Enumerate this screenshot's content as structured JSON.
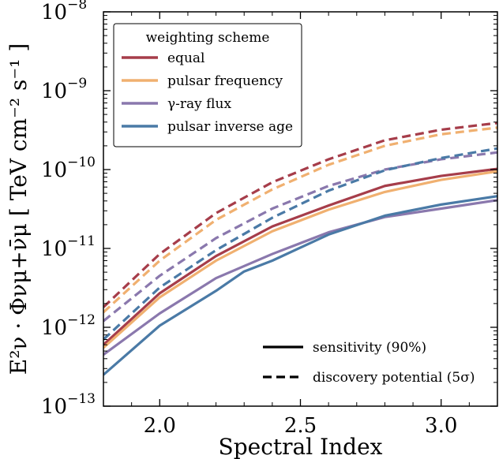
{
  "chart_data": {
    "type": "line",
    "xlabel": "Spectral Index",
    "ylabel": "E²ν · Φνμ+ν̄μ [ TeV cm⁻² s⁻¹ ]",
    "xlim": [
      1.8,
      3.2
    ],
    "ylim": [
      1e-13,
      1e-08
    ],
    "yscale": "log",
    "x_ticks": [
      2.0,
      2.5,
      3.0
    ],
    "x_tick_labels": [
      "2.0",
      "2.5",
      "3.0"
    ],
    "y_ticks": [
      {
        "value": 1e-13,
        "base": "10",
        "exp": "−13"
      },
      {
        "value": 1e-12,
        "base": "10",
        "exp": "−12"
      },
      {
        "value": 1e-11,
        "base": "10",
        "exp": "−11"
      },
      {
        "value": 1e-10,
        "base": "10",
        "exp": "−10"
      },
      {
        "value": 1e-09,
        "base": "10",
        "exp": "−9"
      },
      {
        "value": 1e-08,
        "base": "10",
        "exp": "−8"
      }
    ],
    "grid": false,
    "legend_title": "weighting scheme",
    "legend_position": "top-left",
    "style_legend_position": "bottom-right",
    "series": [
      {
        "name": "equal",
        "color": "#a63d4a",
        "style": "sensitivity",
        "x": [
          1.8,
          2.0,
          2.2,
          2.4,
          2.6,
          2.8,
          3.0,
          3.2
        ],
        "y": [
          6e-13,
          2.7e-12,
          8e-12,
          1.9e-11,
          3.5e-11,
          6.2e-11,
          8.3e-11,
          1.02e-10
        ]
      },
      {
        "name": "pulsar frequency",
        "color": "#f0b070",
        "style": "sensitivity",
        "x": [
          1.8,
          2.0,
          2.2,
          2.4,
          2.6,
          2.8,
          3.0,
          3.2
        ],
        "y": [
          5.5e-13,
          2.4e-12,
          7e-12,
          1.65e-11,
          3.1e-11,
          5.2e-11,
          7.4e-11,
          9.5e-11
        ]
      },
      {
        "name": "γ-ray flux",
        "color": "#8a78ad",
        "style": "sensitivity",
        "x": [
          1.8,
          2.0,
          2.2,
          2.4,
          2.6,
          2.8,
          3.0,
          3.2
        ],
        "y": [
          4.5e-13,
          1.5e-12,
          4.2e-12,
          8.5e-12,
          1.6e-11,
          2.5e-11,
          3.2e-11,
          4.1e-11
        ]
      },
      {
        "name": "pulsar inverse age",
        "color": "#4a7aa6",
        "style": "sensitivity",
        "x": [
          1.8,
          2.0,
          2.2,
          2.3,
          2.4,
          2.6,
          2.8,
          3.0,
          3.2
        ],
        "y": [
          2.5e-13,
          1.05e-12,
          2.9e-12,
          5.1e-12,
          7e-12,
          1.5e-11,
          2.6e-11,
          3.6e-11,
          4.6e-11
        ]
      },
      {
        "name": "equal",
        "color": "#a63d4a",
        "style": "discovery",
        "x": [
          1.8,
          2.0,
          2.2,
          2.4,
          2.6,
          2.8,
          3.0,
          3.2
        ],
        "y": [
          1.8e-12,
          8.5e-12,
          2.8e-11,
          6.9e-11,
          1.35e-10,
          2.35e-10,
          3.2e-10,
          3.9e-10
        ]
      },
      {
        "name": "pulsar frequency",
        "color": "#f0b070",
        "style": "discovery",
        "x": [
          1.8,
          2.0,
          2.2,
          2.4,
          2.6,
          2.8,
          3.0,
          3.2
        ],
        "y": [
          1.55e-12,
          7e-12,
          2.3e-11,
          5.6e-11,
          1.15e-10,
          2e-10,
          2.8e-10,
          3.4e-10
        ]
      },
      {
        "name": "γ-ray flux",
        "color": "#8a78ad",
        "style": "discovery",
        "x": [
          1.8,
          2.0,
          2.2,
          2.4,
          2.6,
          2.8,
          3.0,
          3.2
        ],
        "y": [
          1.2e-12,
          4.5e-12,
          1.35e-11,
          3.2e-11,
          6.2e-11,
          1e-10,
          1.35e-10,
          1.65e-10
        ]
      },
      {
        "name": "pulsar inverse age",
        "color": "#4a7aa6",
        "style": "discovery",
        "x": [
          1.8,
          2.0,
          2.2,
          2.4,
          2.6,
          2.8,
          3.0,
          3.2
        ],
        "y": [
          7e-13,
          3.2e-12,
          9.5e-12,
          2.45e-11,
          5.4e-11,
          9.8e-11,
          1.4e-10,
          1.85e-10
        ]
      }
    ],
    "legend_entries": [
      {
        "label": "equal",
        "color": "#a63d4a"
      },
      {
        "label": "pulsar frequency",
        "color": "#f0b070"
      },
      {
        "label": "γ-ray flux",
        "color": "#8a78ad"
      },
      {
        "label": "pulsar inverse age",
        "color": "#4a7aa6"
      }
    ],
    "style_entries": [
      {
        "label": "sensitivity (90%)",
        "dash": "solid"
      },
      {
        "label": "discovery potential (5σ)",
        "dash": "dashed"
      }
    ]
  }
}
